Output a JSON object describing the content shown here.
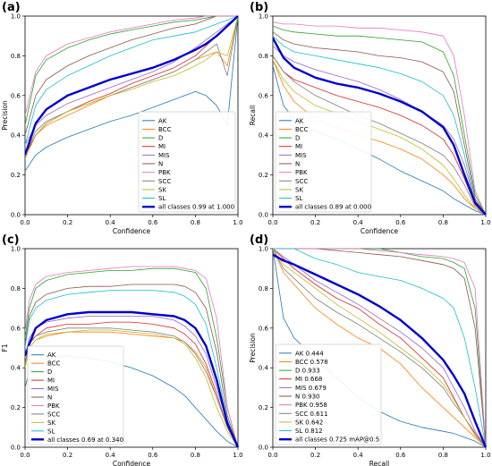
{
  "series_colors": {
    "AK": "#1f77b4",
    "BCC": "#ff7f0e",
    "D": "#2ca02c",
    "MI": "#d62728",
    "MIS": "#9467bd",
    "N": "#8c564b",
    "PBK": "#e377c2",
    "SCC": "#7f7f7f",
    "SK": "#bcbd22",
    "SL": "#17becf",
    "all": "#0000cc"
  },
  "chart_data": [
    {
      "id": "a",
      "letter": "(a)",
      "type": "line",
      "xlabel": "Confidence",
      "ylabel": "Precision",
      "xlim": [
        0,
        1
      ],
      "ylim": [
        0,
        1
      ],
      "xticks": [
        "0.0",
        "0.2",
        "0.4",
        "0.6",
        "0.8",
        "1.0"
      ],
      "yticks": [
        "0.0",
        "0.2",
        "0.4",
        "0.6",
        "0.8",
        "1.0"
      ],
      "grid": false,
      "legend_position": "lower-right",
      "x": [
        0.0,
        0.05,
        0.1,
        0.2,
        0.3,
        0.4,
        0.5,
        0.6,
        0.7,
        0.8,
        0.85,
        0.9,
        0.95,
        1.0
      ],
      "series": [
        {
          "key": "AK",
          "name": "AK",
          "values": [
            0.22,
            0.3,
            0.34,
            0.39,
            0.43,
            0.47,
            0.5,
            0.54,
            0.58,
            0.62,
            0.6,
            0.55,
            0.45,
            1.0
          ]
        },
        {
          "key": "BCC",
          "name": "BCC",
          "values": [
            0.3,
            0.4,
            0.45,
            0.5,
            0.55,
            0.6,
            0.64,
            0.68,
            0.72,
            0.78,
            0.8,
            0.82,
            0.75,
            1.0
          ]
        },
        {
          "key": "D",
          "name": "D",
          "values": [
            0.45,
            0.7,
            0.78,
            0.84,
            0.88,
            0.91,
            0.93,
            0.95,
            0.97,
            0.98,
            0.99,
            1.0,
            1.0,
            1.0
          ]
        },
        {
          "key": "MI",
          "name": "MI",
          "values": [
            0.3,
            0.4,
            0.46,
            0.52,
            0.57,
            0.61,
            0.66,
            0.7,
            0.74,
            0.8,
            0.85,
            0.9,
            0.95,
            1.0
          ]
        },
        {
          "key": "MIS",
          "name": "MIS",
          "values": [
            0.35,
            0.45,
            0.5,
            0.56,
            0.6,
            0.64,
            0.68,
            0.72,
            0.77,
            0.84,
            0.88,
            0.92,
            0.96,
            1.0
          ]
        },
        {
          "key": "N",
          "name": "N",
          "values": [
            0.4,
            0.6,
            0.68,
            0.75,
            0.8,
            0.84,
            0.88,
            0.91,
            0.94,
            0.96,
            0.98,
            1.0,
            1.0,
            1.0
          ]
        },
        {
          "key": "PBK",
          "name": "PBK",
          "values": [
            0.5,
            0.72,
            0.8,
            0.86,
            0.89,
            0.92,
            0.94,
            0.96,
            0.98,
            0.99,
            1.0,
            1.0,
            1.0,
            1.0
          ]
        },
        {
          "key": "SCC",
          "name": "SCC",
          "values": [
            0.3,
            0.42,
            0.47,
            0.52,
            0.56,
            0.6,
            0.64,
            0.68,
            0.72,
            0.78,
            0.82,
            0.86,
            0.7,
            1.0
          ]
        },
        {
          "key": "SK",
          "name": "SK",
          "values": [
            0.28,
            0.4,
            0.46,
            0.52,
            0.56,
            0.6,
            0.63,
            0.67,
            0.7,
            0.75,
            0.78,
            0.82,
            0.8,
            1.0
          ]
        },
        {
          "key": "SL",
          "name": "SL",
          "values": [
            0.35,
            0.55,
            0.63,
            0.7,
            0.75,
            0.8,
            0.84,
            0.88,
            0.9,
            0.92,
            0.94,
            0.96,
            0.98,
            1.0
          ]
        },
        {
          "key": "all",
          "name": "all classes 0.99 at 1.000",
          "bold": true,
          "values": [
            0.3,
            0.46,
            0.53,
            0.6,
            0.64,
            0.68,
            0.71,
            0.74,
            0.78,
            0.83,
            0.86,
            0.9,
            0.95,
            1.0
          ]
        }
      ]
    },
    {
      "id": "b",
      "letter": "(b)",
      "type": "line",
      "xlabel": "Confidence",
      "ylabel": "Recall",
      "xlim": [
        0,
        1
      ],
      "ylim": [
        0,
        1
      ],
      "xticks": [
        "0.0",
        "0.2",
        "0.4",
        "0.6",
        "0.8",
        "1.0"
      ],
      "yticks": [
        "0.0",
        "0.2",
        "0.4",
        "0.6",
        "0.8",
        "1.0"
      ],
      "grid": false,
      "legend_position": "lower-left",
      "x": [
        0.0,
        0.05,
        0.1,
        0.2,
        0.3,
        0.4,
        0.5,
        0.6,
        0.7,
        0.8,
        0.85,
        0.9,
        0.95,
        1.0
      ],
      "series": [
        {
          "key": "AK",
          "name": "AK",
          "values": [
            0.75,
            0.55,
            0.48,
            0.42,
            0.38,
            0.33,
            0.28,
            0.22,
            0.17,
            0.12,
            0.08,
            0.05,
            0.02,
            0.0
          ]
        },
        {
          "key": "BCC",
          "name": "BCC",
          "values": [
            0.78,
            0.65,
            0.57,
            0.48,
            0.44,
            0.4,
            0.37,
            0.33,
            0.28,
            0.2,
            0.15,
            0.08,
            0.03,
            0.0
          ]
        },
        {
          "key": "D",
          "name": "D",
          "values": [
            0.95,
            0.93,
            0.92,
            0.91,
            0.9,
            0.9,
            0.89,
            0.88,
            0.87,
            0.82,
            0.7,
            0.4,
            0.1,
            0.0
          ]
        },
        {
          "key": "MI",
          "name": "MI",
          "values": [
            0.8,
            0.72,
            0.68,
            0.64,
            0.6,
            0.57,
            0.54,
            0.5,
            0.45,
            0.38,
            0.3,
            0.18,
            0.05,
            0.0
          ]
        },
        {
          "key": "MIS",
          "name": "MIS",
          "values": [
            0.85,
            0.8,
            0.77,
            0.73,
            0.7,
            0.67,
            0.63,
            0.58,
            0.52,
            0.45,
            0.38,
            0.25,
            0.07,
            0.0
          ]
        },
        {
          "key": "N",
          "name": "N",
          "values": [
            0.92,
            0.88,
            0.86,
            0.84,
            0.83,
            0.82,
            0.8,
            0.79,
            0.77,
            0.72,
            0.62,
            0.35,
            0.08,
            0.0
          ]
        },
        {
          "key": "PBK",
          "name": "PBK",
          "values": [
            0.97,
            0.96,
            0.96,
            0.95,
            0.95,
            0.94,
            0.94,
            0.93,
            0.92,
            0.9,
            0.8,
            0.5,
            0.12,
            0.0
          ]
        },
        {
          "key": "SCC",
          "name": "SCC",
          "values": [
            0.8,
            0.72,
            0.67,
            0.6,
            0.55,
            0.5,
            0.46,
            0.41,
            0.36,
            0.3,
            0.24,
            0.15,
            0.04,
            0.0
          ]
        },
        {
          "key": "SK",
          "name": "SK",
          "values": [
            0.78,
            0.68,
            0.62,
            0.55,
            0.51,
            0.47,
            0.43,
            0.39,
            0.33,
            0.25,
            0.18,
            0.1,
            0.03,
            0.0
          ]
        },
        {
          "key": "SL",
          "name": "SL",
          "values": [
            0.9,
            0.85,
            0.82,
            0.8,
            0.78,
            0.76,
            0.74,
            0.71,
            0.67,
            0.6,
            0.5,
            0.3,
            0.06,
            0.0
          ]
        },
        {
          "key": "all",
          "name": "all classes 0.89 at 0.000",
          "bold": true,
          "values": [
            0.89,
            0.79,
            0.74,
            0.69,
            0.66,
            0.64,
            0.61,
            0.57,
            0.52,
            0.44,
            0.35,
            0.2,
            0.06,
            0.0
          ]
        }
      ]
    },
    {
      "id": "c",
      "letter": "(c)",
      "type": "line",
      "xlabel": "Confidence",
      "ylabel": "F1",
      "xlim": [
        0,
        1
      ],
      "ylim": [
        0,
        1
      ],
      "xticks": [
        "0.0",
        "0.2",
        "0.4",
        "0.6",
        "0.8",
        "1.0"
      ],
      "yticks": [
        "0.0",
        "0.2",
        "0.4",
        "0.6",
        "0.8",
        "1.0"
      ],
      "grid": false,
      "legend_position": "lower-left",
      "x": [
        0.0,
        0.02,
        0.05,
        0.1,
        0.2,
        0.3,
        0.4,
        0.5,
        0.6,
        0.7,
        0.75,
        0.8,
        0.85,
        0.9,
        0.95,
        1.0
      ],
      "series": [
        {
          "key": "AK",
          "name": "AK",
          "values": [
            0.3,
            0.38,
            0.42,
            0.45,
            0.46,
            0.45,
            0.43,
            0.4,
            0.36,
            0.3,
            0.26,
            0.2,
            0.14,
            0.08,
            0.03,
            0.0
          ]
        },
        {
          "key": "BCC",
          "name": "BCC",
          "values": [
            0.4,
            0.5,
            0.54,
            0.56,
            0.58,
            0.58,
            0.58,
            0.57,
            0.56,
            0.55,
            0.53,
            0.48,
            0.4,
            0.25,
            0.1,
            0.0
          ]
        },
        {
          "key": "D",
          "name": "D",
          "values": [
            0.55,
            0.7,
            0.8,
            0.84,
            0.87,
            0.88,
            0.89,
            0.89,
            0.9,
            0.9,
            0.89,
            0.88,
            0.8,
            0.55,
            0.2,
            0.0
          ]
        },
        {
          "key": "MI",
          "name": "MI",
          "values": [
            0.42,
            0.52,
            0.56,
            0.6,
            0.62,
            0.62,
            0.63,
            0.63,
            0.62,
            0.6,
            0.57,
            0.52,
            0.42,
            0.27,
            0.1,
            0.0
          ]
        },
        {
          "key": "MIS",
          "name": "MIS",
          "values": [
            0.45,
            0.55,
            0.6,
            0.63,
            0.65,
            0.66,
            0.66,
            0.66,
            0.66,
            0.64,
            0.61,
            0.56,
            0.47,
            0.3,
            0.12,
            0.0
          ]
        },
        {
          "key": "N",
          "name": "N",
          "values": [
            0.52,
            0.66,
            0.73,
            0.77,
            0.8,
            0.81,
            0.81,
            0.82,
            0.82,
            0.82,
            0.81,
            0.78,
            0.7,
            0.48,
            0.16,
            0.0
          ]
        },
        {
          "key": "PBK",
          "name": "PBK",
          "values": [
            0.58,
            0.74,
            0.82,
            0.86,
            0.88,
            0.89,
            0.9,
            0.91,
            0.91,
            0.91,
            0.9,
            0.89,
            0.85,
            0.65,
            0.2,
            0.0
          ]
        },
        {
          "key": "SCC",
          "name": "SCC",
          "values": [
            0.42,
            0.53,
            0.56,
            0.58,
            0.6,
            0.6,
            0.6,
            0.59,
            0.58,
            0.56,
            0.53,
            0.47,
            0.38,
            0.25,
            0.1,
            0.0
          ]
        },
        {
          "key": "SK",
          "name": "SK",
          "values": [
            0.4,
            0.5,
            0.54,
            0.57,
            0.58,
            0.59,
            0.59,
            0.58,
            0.57,
            0.55,
            0.52,
            0.45,
            0.35,
            0.2,
            0.08,
            0.0
          ]
        },
        {
          "key": "SL",
          "name": "SL",
          "values": [
            0.5,
            0.64,
            0.7,
            0.74,
            0.77,
            0.78,
            0.79,
            0.79,
            0.79,
            0.78,
            0.76,
            0.72,
            0.62,
            0.4,
            0.14,
            0.0
          ]
        },
        {
          "key": "all",
          "name": "all classes 0.69 at 0.340",
          "bold": true,
          "values": [
            0.46,
            0.52,
            0.6,
            0.64,
            0.67,
            0.68,
            0.68,
            0.68,
            0.67,
            0.66,
            0.64,
            0.6,
            0.51,
            0.34,
            0.12,
            0.0
          ]
        }
      ]
    },
    {
      "id": "d",
      "letter": "(d)",
      "type": "line",
      "xlabel": "Recall",
      "ylabel": "Precision",
      "xlim": [
        0,
        1
      ],
      "ylim": [
        0,
        1
      ],
      "xticks": [
        "0.0",
        "0.2",
        "0.4",
        "0.6",
        "0.8",
        "1.0"
      ],
      "yticks": [
        "0.0",
        "0.2",
        "0.4",
        "0.6",
        "0.8",
        "1.0"
      ],
      "grid": false,
      "legend_position": "lower-left",
      "x": [
        0.0,
        0.05,
        0.1,
        0.2,
        0.3,
        0.4,
        0.5,
        0.6,
        0.7,
        0.8,
        0.85,
        0.9,
        0.95,
        1.0
      ],
      "series": [
        {
          "key": "AK",
          "name": "AK 0.444",
          "values": [
            1.0,
            0.65,
            0.55,
            0.45,
            0.35,
            0.25,
            0.18,
            0.13,
            0.1,
            0.08,
            0.07,
            0.05,
            0.03,
            0.0
          ]
        },
        {
          "key": "BCC",
          "name": "BCC 0.578",
          "values": [
            1.0,
            0.88,
            0.82,
            0.7,
            0.62,
            0.55,
            0.5,
            0.42,
            0.3,
            0.2,
            0.15,
            0.1,
            0.05,
            0.0
          ]
        },
        {
          "key": "D",
          "name": "D 0.933",
          "values": [
            1.0,
            1.0,
            1.0,
            1.0,
            1.0,
            1.0,
            1.0,
            0.98,
            0.96,
            0.95,
            0.93,
            0.9,
            0.7,
            0.0
          ]
        },
        {
          "key": "MI",
          "name": "MI 0.668",
          "values": [
            1.0,
            0.95,
            0.9,
            0.82,
            0.75,
            0.7,
            0.62,
            0.55,
            0.45,
            0.35,
            0.25,
            0.15,
            0.07,
            0.0
          ]
        },
        {
          "key": "MIS",
          "name": "MIS 0.679",
          "values": [
            1.0,
            0.96,
            0.92,
            0.84,
            0.78,
            0.72,
            0.65,
            0.58,
            0.5,
            0.4,
            0.3,
            0.2,
            0.08,
            0.0
          ]
        },
        {
          "key": "N",
          "name": "N 0.930",
          "values": [
            1.0,
            1.0,
            1.0,
            1.0,
            0.99,
            0.98,
            0.97,
            0.96,
            0.94,
            0.92,
            0.9,
            0.85,
            0.6,
            0.0
          ]
        },
        {
          "key": "PBK",
          "name": "PBK 0.958",
          "values": [
            1.0,
            1.0,
            1.0,
            1.0,
            1.0,
            1.0,
            0.99,
            0.98,
            0.97,
            0.96,
            0.95,
            0.93,
            0.8,
            0.0
          ]
        },
        {
          "key": "SCC",
          "name": "SCC 0.611",
          "values": [
            1.0,
            0.9,
            0.85,
            0.75,
            0.68,
            0.62,
            0.55,
            0.48,
            0.4,
            0.3,
            0.22,
            0.15,
            0.06,
            0.0
          ]
        },
        {
          "key": "SK",
          "name": "SK 0.642",
          "values": [
            1.0,
            0.92,
            0.88,
            0.8,
            0.72,
            0.65,
            0.58,
            0.5,
            0.42,
            0.32,
            0.24,
            0.15,
            0.06,
            0.0
          ]
        },
        {
          "key": "SL",
          "name": "SL 0.812",
          "values": [
            1.0,
            1.0,
            1.0,
            0.95,
            0.92,
            0.88,
            0.86,
            0.84,
            0.8,
            0.75,
            0.7,
            0.55,
            0.3,
            0.0
          ]
        },
        {
          "key": "all",
          "name": "all classes 0.725 mAP@0.5",
          "bold": true,
          "values": [
            0.97,
            0.94,
            0.92,
            0.87,
            0.82,
            0.77,
            0.71,
            0.64,
            0.55,
            0.44,
            0.36,
            0.27,
            0.13,
            0.0
          ]
        }
      ]
    }
  ]
}
